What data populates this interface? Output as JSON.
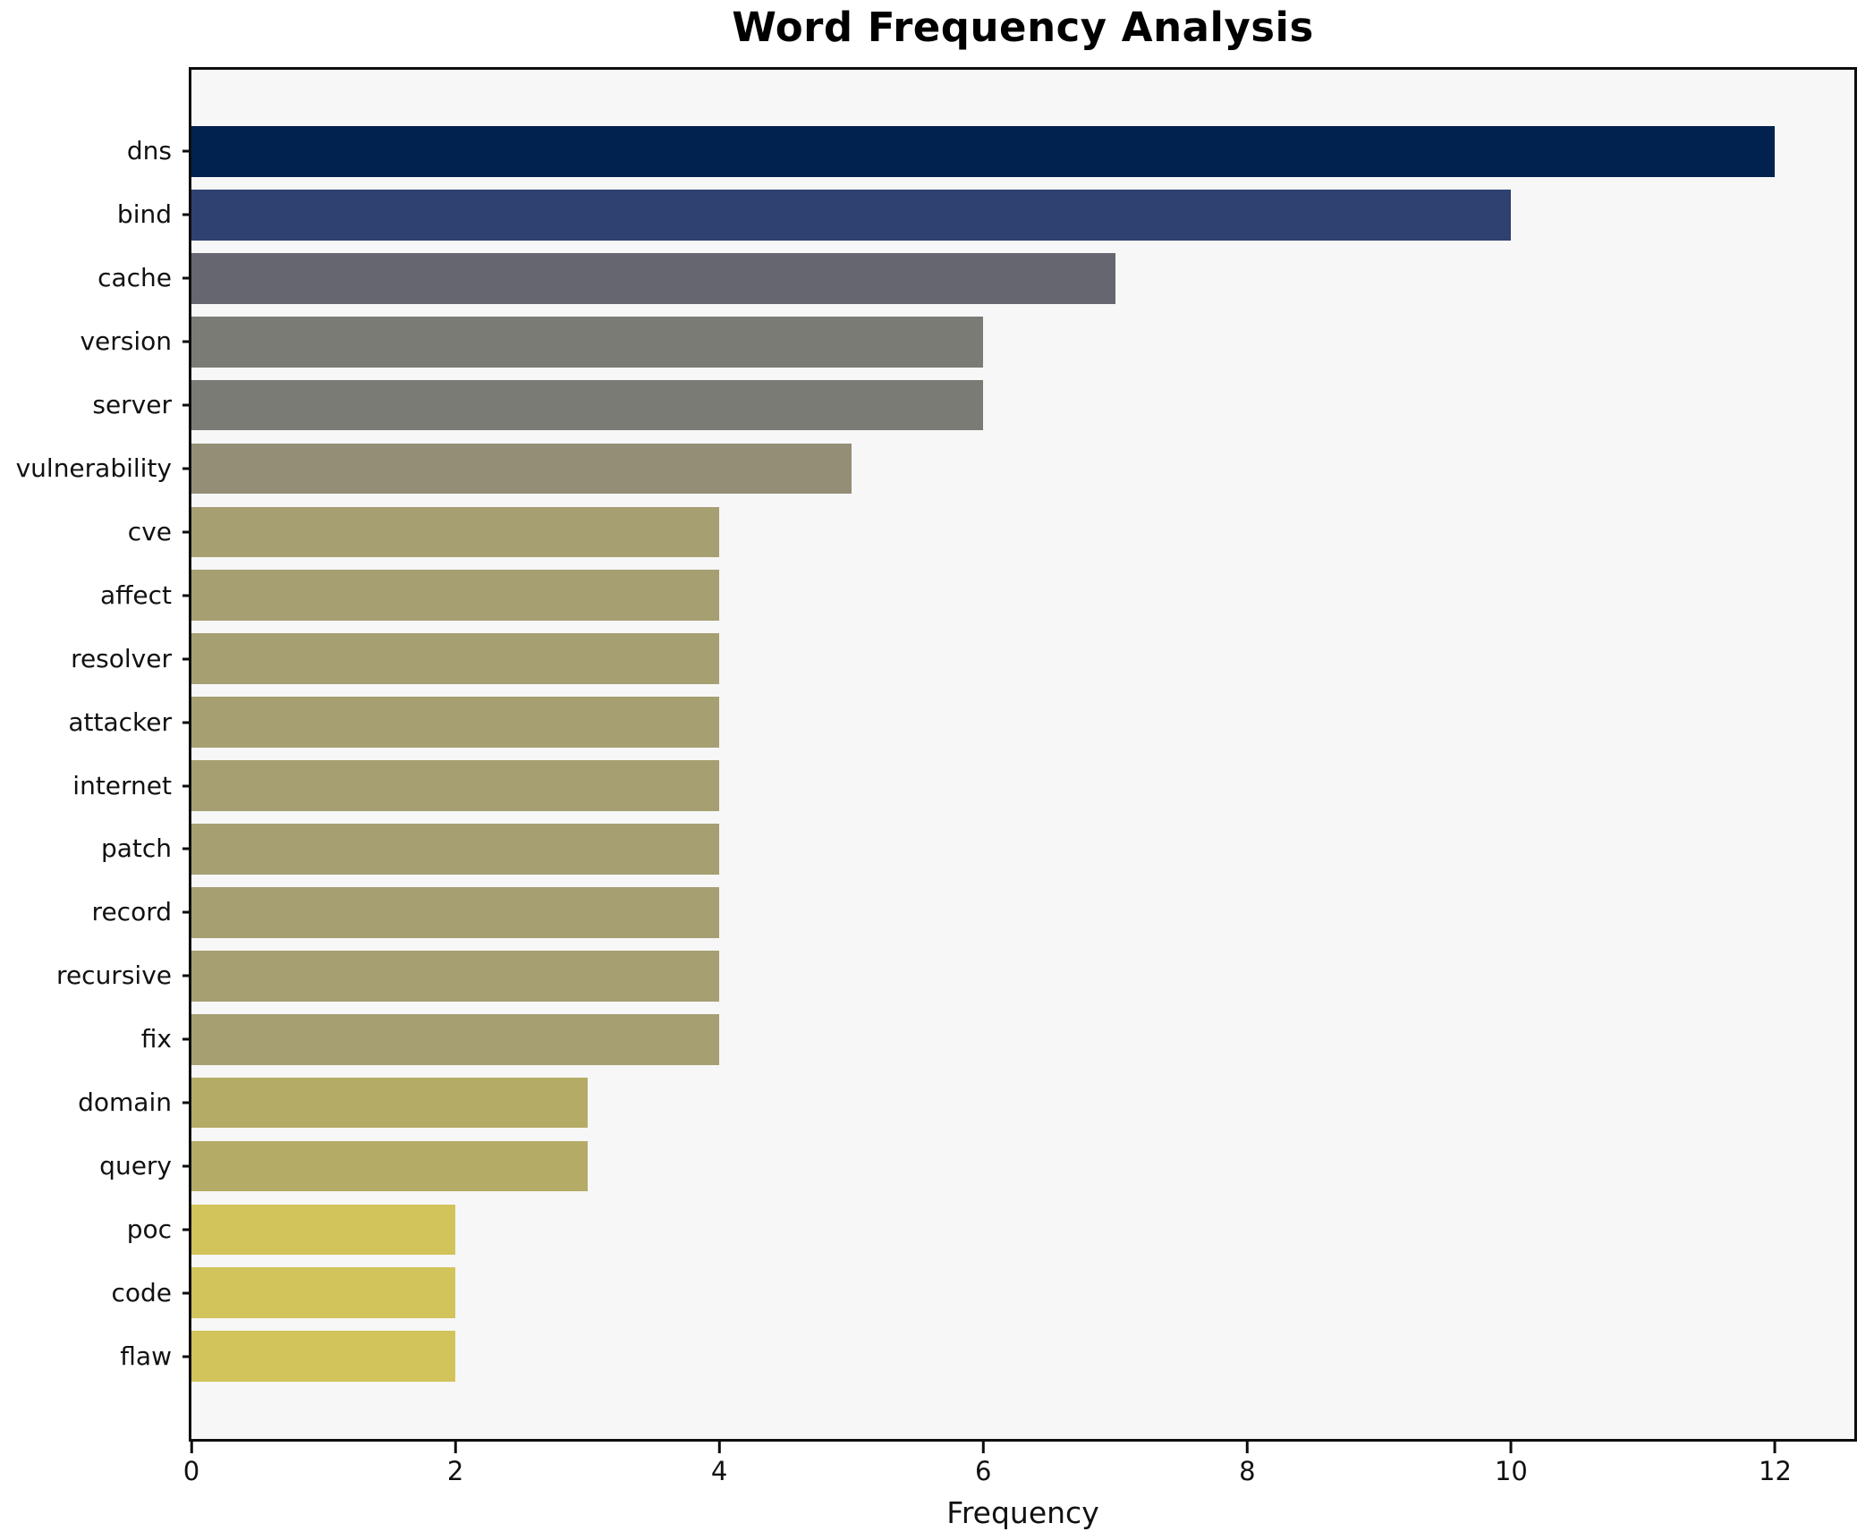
{
  "chart_data": {
    "type": "bar",
    "orientation": "horizontal",
    "title": "Word Frequency Analysis",
    "xlabel": "Frequency",
    "ylabel": "",
    "categories": [
      "dns",
      "bind",
      "cache",
      "version",
      "server",
      "vulnerability",
      "cve",
      "affect",
      "resolver",
      "attacker",
      "internet",
      "patch",
      "record",
      "recursive",
      "fix",
      "domain",
      "query",
      "poc",
      "code",
      "flaw"
    ],
    "values": [
      12,
      10,
      7,
      6,
      6,
      5,
      4,
      4,
      4,
      4,
      4,
      4,
      4,
      4,
      4,
      3,
      3,
      2,
      2,
      2
    ],
    "bar_colors": [
      "#01214e",
      "#2e4170",
      "#65666f",
      "#7b7b76",
      "#7b7b76",
      "#958e76",
      "#a69f72",
      "#a69f72",
      "#a69f72",
      "#a69f72",
      "#a69f72",
      "#a69f72",
      "#a69f72",
      "#a69f72",
      "#a69f72",
      "#b4ab66",
      "#b4ab66",
      "#d2c35a",
      "#d2c35a",
      "#d2c35a"
    ],
    "xticks": [
      0,
      2,
      4,
      6,
      8,
      10,
      12
    ],
    "xlim": [
      0,
      12.6
    ],
    "grid": false,
    "legend_position": "none",
    "plot_bg": "#f7f7f7",
    "figure_bg": "#ffffff",
    "spine_color": "#0d0d0d"
  }
}
